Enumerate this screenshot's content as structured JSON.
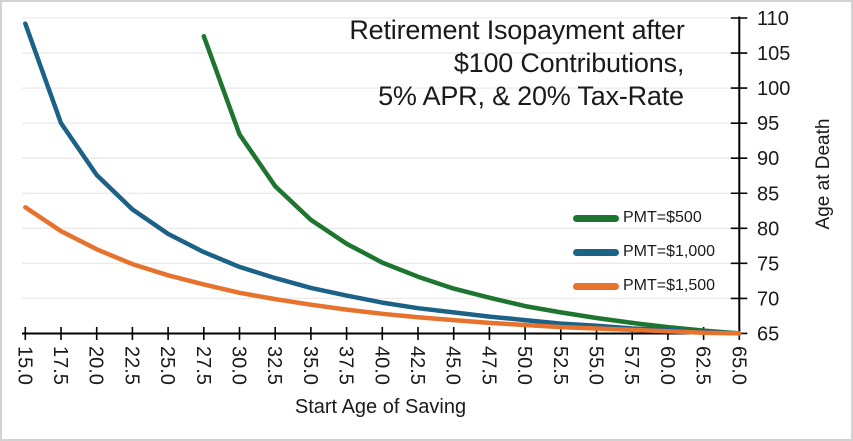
{
  "title": {
    "line1": "Retirement Isopayment after",
    "line2": "$100 Contributions,",
    "line3": "5% APR, & 20% Tax-Rate"
  },
  "chart_data": {
    "type": "line",
    "title": "Retirement Isopayment after $100 Contributions, 5% APR, & 20% Tax-Rate",
    "xlabel": "Start Age of Saving",
    "ylabel": "Age at Death",
    "xlim": [
      15.0,
      65.0
    ],
    "ylim": [
      65,
      110
    ],
    "grid": "horizontal",
    "legend_position": "middle-right",
    "x_tick_labels": [
      "15.0",
      "17.5",
      "20.0",
      "22.5",
      "25.0",
      "27.5",
      "30.0",
      "32.5",
      "35.0",
      "37.5",
      "40.0",
      "42.5",
      "45.0",
      "47.5",
      "50.0",
      "52.5",
      "55.0",
      "57.5",
      "60.0",
      "62.5",
      "65.0"
    ],
    "y_ticks": [
      65,
      70,
      75,
      80,
      85,
      90,
      95,
      100,
      105,
      110
    ],
    "series": [
      {
        "name": "PMT=$500",
        "color": "#1E7530",
        "x": [
          27.5,
          30,
          32.5,
          35,
          37.5,
          40,
          42.5,
          45,
          47.5,
          50,
          52.5,
          55,
          57.5,
          60,
          62.5,
          65
        ],
        "y": [
          107.4,
          93.4,
          86.0,
          81.2,
          77.8,
          75.1,
          73.1,
          71.4,
          70.1,
          68.9,
          68.0,
          67.2,
          66.5,
          65.9,
          65.4,
          65.0
        ]
      },
      {
        "name": "PMT=$1,000",
        "color": "#1C6287",
        "x": [
          15,
          17.5,
          20,
          22.5,
          25,
          27.5,
          30,
          32.5,
          35,
          37.5,
          40,
          42.5,
          45,
          47.5,
          50,
          52.5,
          55,
          57.5,
          60,
          62.5,
          65
        ],
        "y": [
          109.2,
          95.0,
          87.6,
          82.7,
          79.2,
          76.6,
          74.5,
          72.9,
          71.5,
          70.4,
          69.4,
          68.6,
          68.0,
          67.4,
          66.9,
          66.4,
          66.1,
          65.7,
          65.5,
          65.2,
          65.0
        ]
      },
      {
        "name": "PMT=$1,500",
        "color": "#E6722E",
        "x": [
          15,
          17.5,
          20,
          22.5,
          25,
          27.5,
          30,
          32.5,
          35,
          37.5,
          40,
          42.5,
          45,
          47.5,
          50,
          52.5,
          55,
          57.5,
          60,
          62.5,
          65
        ],
        "y": [
          83.0,
          79.6,
          77.0,
          74.9,
          73.3,
          72.0,
          70.8,
          69.9,
          69.1,
          68.4,
          67.8,
          67.3,
          66.9,
          66.5,
          66.2,
          65.9,
          65.7,
          65.5,
          65.3,
          65.1,
          65.0
        ]
      }
    ]
  }
}
